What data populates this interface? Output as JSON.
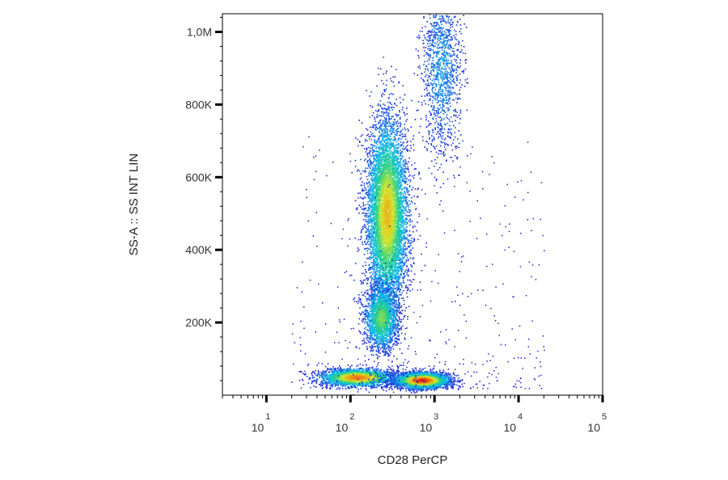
{
  "chart_data": {
    "type": "scatter",
    "title": "",
    "xlabel": "CD28 PerCP",
    "ylabel": "SS-A :: SS INT LIN",
    "x_scale": "log",
    "xlim": [
      3,
      100000
    ],
    "ylim": [
      0,
      1050000
    ],
    "grid": false,
    "legend": "none",
    "density_colormap": [
      "#1e22d8",
      "#0bb8ee",
      "#23d08a",
      "#d8e628",
      "#f08a12",
      "#e01414"
    ],
    "x_ticks": [
      {
        "value": 10,
        "base": "10",
        "exp": "1"
      },
      {
        "value": 100,
        "base": "10",
        "exp": "2"
      },
      {
        "value": 1000,
        "base": "10",
        "exp": "3"
      },
      {
        "value": 10000,
        "base": "10",
        "exp": "4"
      },
      {
        "value": 100000,
        "base": "10",
        "exp": "5"
      }
    ],
    "y_ticks": [
      {
        "value": 200000,
        "label": "200K"
      },
      {
        "value": 400000,
        "label": "400K"
      },
      {
        "value": 600000,
        "label": "600K"
      },
      {
        "value": 800000,
        "label": "800K"
      },
      {
        "value": 1000000,
        "label": "1,0M"
      }
    ],
    "populations": [
      {
        "label": "",
        "x_center": 120,
        "y_center": 50000,
        "x_spread_decades": 0.22,
        "y_spread": 12000,
        "peak_density": 0.85,
        "events": 2600
      },
      {
        "label": "",
        "x_center": 700,
        "y_center": 42000,
        "x_spread_decades": 0.16,
        "y_spread": 11000,
        "peak_density": 1.0,
        "events": 3200
      },
      {
        "label": "",
        "x_center": 270,
        "y_center": 500000,
        "x_spread_decades": 0.12,
        "y_spread": 130000,
        "peak_density": 0.7,
        "events": 7000
      },
      {
        "label": "",
        "x_center": 230,
        "y_center": 215000,
        "x_spread_decades": 0.1,
        "y_spread": 45000,
        "peak_density": 0.5,
        "events": 2000
      },
      {
        "label": "",
        "x_center": 1200,
        "y_center": 900000,
        "x_spread_decades": 0.12,
        "y_spread": 120000,
        "peak_density": 0.15,
        "events": 1300
      }
    ]
  }
}
